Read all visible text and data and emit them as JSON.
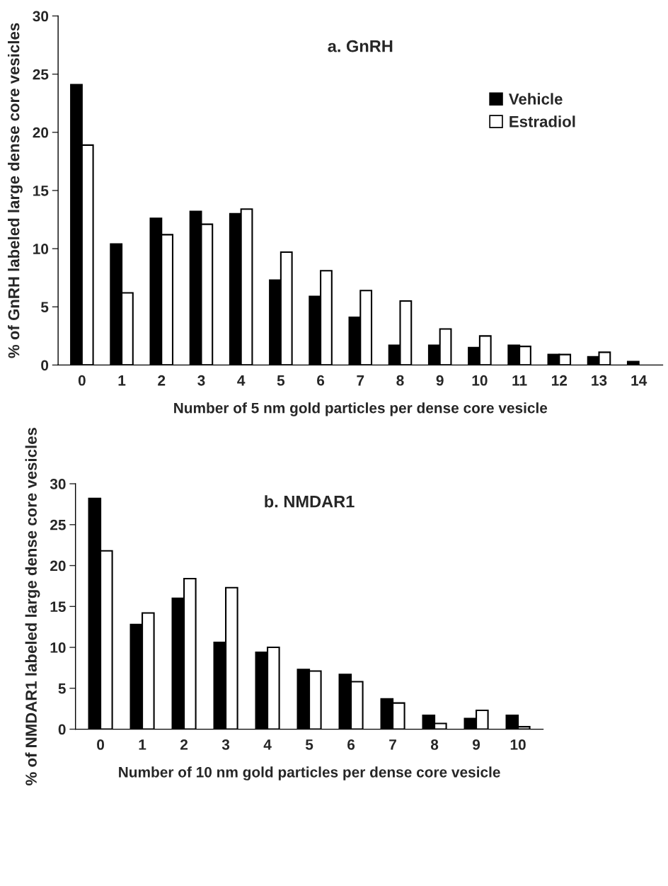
{
  "chart_data": [
    {
      "type": "bar",
      "title": "a. GnRH",
      "xlabel": "Number of 5 nm gold particles per dense core vesicle",
      "ylabel": "% of GnRH labeled large dense core vesicles",
      "categories": [
        "0",
        "1",
        "2",
        "3",
        "4",
        "5",
        "6",
        "7",
        "8",
        "9",
        "10",
        "11",
        "12",
        "13",
        "14"
      ],
      "series": [
        {
          "name": "Vehicle",
          "color": "#000000",
          "values": [
            24.1,
            10.4,
            12.6,
            13.2,
            13.0,
            7.3,
            5.9,
            4.1,
            1.7,
            1.7,
            1.5,
            1.7,
            0.9,
            0.7,
            0.3
          ]
        },
        {
          "name": "Estradiol",
          "color": "#ffffff",
          "values": [
            18.9,
            6.2,
            11.2,
            12.1,
            13.4,
            9.7,
            8.1,
            6.4,
            5.5,
            3.1,
            2.5,
            1.6,
            0.9,
            1.1,
            null
          ]
        }
      ],
      "ylim": [
        0,
        30
      ],
      "yticks": [
        0,
        5,
        10,
        15,
        20,
        25,
        30
      ],
      "grid": false,
      "legend": "top right"
    },
    {
      "type": "bar",
      "title": "b. NMDAR1",
      "xlabel": "Number of 10 nm gold particles per dense core vesicle",
      "ylabel": "% of NMDAR1 labeled large dense core vesicles",
      "categories": [
        "0",
        "1",
        "2",
        "3",
        "4",
        "5",
        "6",
        "7",
        "8",
        "9",
        "10"
      ],
      "series": [
        {
          "color": "#000000",
          "values": [
            28.2,
            12.8,
            16.0,
            10.6,
            9.4,
            7.3,
            6.7,
            3.7,
            1.7,
            1.3,
            1.7
          ]
        },
        {
          "color": "#ffffff",
          "values": [
            21.8,
            14.2,
            18.4,
            17.3,
            10.0,
            7.1,
            5.8,
            3.2,
            0.7,
            2.3,
            0.3
          ]
        }
      ],
      "ylim": [
        0,
        30
      ],
      "yticks": [
        0,
        5,
        10,
        15,
        20,
        25,
        30
      ],
      "grid": false,
      "legend": false
    }
  ]
}
